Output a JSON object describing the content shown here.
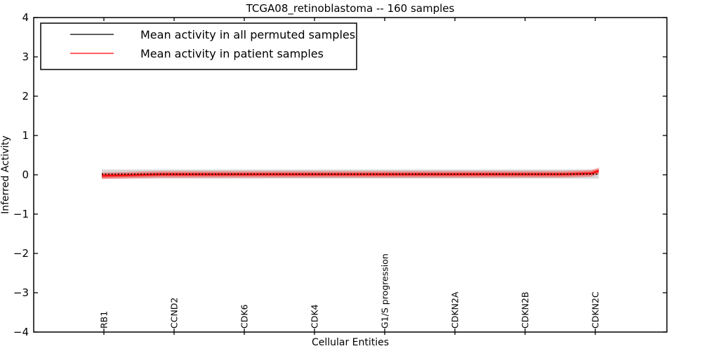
{
  "figure": {
    "title": "TCGA08_retinoblastoma -- 160 samples",
    "xlabel": "Cellular Entities",
    "ylabel": "Inferred Activity"
  },
  "chart_data": {
    "type": "line",
    "title": "TCGA08_retinoblastoma -- 160 samples",
    "xlabel": "Cellular Entities",
    "ylabel": "Inferred Activity",
    "ylim": [
      -4,
      4
    ],
    "yticks": [
      4,
      3,
      2,
      1,
      0,
      -1,
      -2,
      -3,
      -4
    ],
    "ytick_labels": [
      "4",
      "3",
      "2",
      "1",
      "0",
      "−1",
      "−2",
      "−3",
      "−4"
    ],
    "grid": false,
    "legend_position": "upper left",
    "categories": [
      "RB1",
      "CCND2",
      "CDK6",
      "CDK4",
      "G1/S progression",
      "CDKN2A",
      "CDKN2B",
      "CDKN2C"
    ],
    "series": [
      {
        "name": "Mean activity in all permuted samples",
        "color": "#000000",
        "linestyle": "dotted",
        "values": [
          0.02,
          0.02,
          0.02,
          0.02,
          0.02,
          0.02,
          0.02,
          0.02
        ],
        "band_halfwidth": 0.115,
        "band_color": "#909090",
        "band_alpha": 0.35,
        "profile": [
          {
            "t": 0.0,
            "v": 0.018
          },
          {
            "t": 1.0,
            "v": 0.018
          }
        ]
      },
      {
        "name": "Mean activity in patient samples",
        "color": "#ff0000",
        "linestyle": "solid",
        "values": [
          -0.02,
          0.01,
          0.01,
          0.01,
          0.01,
          0.01,
          0.01,
          0.1
        ],
        "band_halfwidth": 0.085,
        "band_color": "#ff0000",
        "band_alpha": 0.3,
        "inner_band_halfwidth": 0.045,
        "profile": [
          {
            "t": 0.0,
            "v": -0.025
          },
          {
            "t": 0.12,
            "v": 0.01
          },
          {
            "t": 0.93,
            "v": 0.013
          },
          {
            "t": 0.985,
            "v": 0.035
          },
          {
            "t": 1.0,
            "v": 0.1
          }
        ]
      }
    ]
  }
}
